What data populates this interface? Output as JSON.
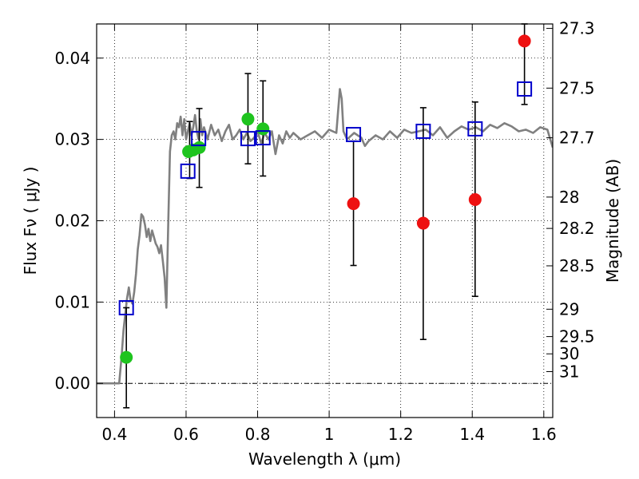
{
  "chart_data": {
    "type": "scatter",
    "title": "",
    "xlabel": "Wavelength  λ (μm)",
    "ylabel": "Flux  Fν  ( μJy )",
    "y2label": "Magnitude (AB)",
    "xlim": [
      0.35,
      1.625
    ],
    "ylim": [
      -0.0042,
      0.0442
    ],
    "grid": true,
    "xticks": [
      {
        "value": 0.4,
        "label": "0.4"
      },
      {
        "value": 0.6,
        "label": "0.6"
      },
      {
        "value": 0.8,
        "label": "0.8"
      },
      {
        "value": 1.0,
        "label": "1"
      },
      {
        "value": 1.2,
        "label": "1.2"
      },
      {
        "value": 1.4,
        "label": "1.4"
      },
      {
        "value": 1.6,
        "label": "1.6"
      }
    ],
    "yticks": [
      {
        "value": 0.0,
        "label": "0.00"
      },
      {
        "value": 0.01,
        "label": "0.01"
      },
      {
        "value": 0.02,
        "label": "0.02"
      },
      {
        "value": 0.03,
        "label": "0.03"
      },
      {
        "value": 0.04,
        "label": "0.04"
      }
    ],
    "y2ticks": [
      {
        "value": 27.3,
        "label": "27.3"
      },
      {
        "value": 27.5,
        "label": "27.5"
      },
      {
        "value": 27.7,
        "label": "27.7"
      },
      {
        "value": 28,
        "label": "28"
      },
      {
        "value": 28.2,
        "label": "28.2"
      },
      {
        "value": 28.5,
        "label": "28.5"
      },
      {
        "value": 29,
        "label": "29"
      },
      {
        "value": 29.5,
        "label": "29.5"
      },
      {
        "value": 30,
        "label": "30"
      },
      {
        "value": 31,
        "label": "31"
      }
    ],
    "colors": {
      "model": "#808080",
      "green": "#1fc41f",
      "red": "#ee1111",
      "blue": "#0000cc",
      "errorbar": "#000000"
    },
    "series": [
      {
        "kind": "line",
        "x": [
          0.35,
          0.4,
          0.413,
          0.42,
          0.425,
          0.43,
          0.435,
          0.44,
          0.445,
          0.45,
          0.455,
          0.46,
          0.465,
          0.47,
          0.475,
          0.48,
          0.485,
          0.49,
          0.495,
          0.5,
          0.505,
          0.51,
          0.515,
          0.52,
          0.525,
          0.53,
          0.535,
          0.54,
          0.545,
          0.55,
          0.555,
          0.56,
          0.565,
          0.57,
          0.575,
          0.58,
          0.585,
          0.59,
          0.595,
          0.6,
          0.605,
          0.61,
          0.615,
          0.62,
          0.625,
          0.63,
          0.635,
          0.64,
          0.645,
          0.65,
          0.66,
          0.67,
          0.68,
          0.69,
          0.7,
          0.71,
          0.72,
          0.73,
          0.74,
          0.75,
          0.76,
          0.77,
          0.78,
          0.79,
          0.8,
          0.81,
          0.82,
          0.83,
          0.84,
          0.85,
          0.86,
          0.87,
          0.88,
          0.89,
          0.9,
          0.92,
          0.94,
          0.96,
          0.98,
          1.0,
          1.02,
          1.03,
          1.035,
          1.04,
          1.05,
          1.07,
          1.09,
          1.1,
          1.11,
          1.13,
          1.15,
          1.17,
          1.19,
          1.21,
          1.23,
          1.25,
          1.27,
          1.29,
          1.31,
          1.33,
          1.35,
          1.37,
          1.39,
          1.41,
          1.43,
          1.45,
          1.47,
          1.49,
          1.51,
          1.53,
          1.55,
          1.57,
          1.59,
          1.61,
          1.625
        ],
        "y": [
          0.0,
          0.0,
          0.0,
          0.0034,
          0.0065,
          0.0085,
          0.0105,
          0.0118,
          0.0102,
          0.0098,
          0.0112,
          0.0135,
          0.0165,
          0.0182,
          0.0208,
          0.0205,
          0.0195,
          0.018,
          0.019,
          0.0175,
          0.0188,
          0.018,
          0.0172,
          0.0168,
          0.016,
          0.017,
          0.015,
          0.013,
          0.0093,
          0.0195,
          0.0285,
          0.0305,
          0.031,
          0.03,
          0.032,
          0.0315,
          0.0328,
          0.0305,
          0.0325,
          0.03,
          0.031,
          0.032,
          0.0305,
          0.0315,
          0.033,
          0.031,
          0.03,
          0.0325,
          0.0305,
          0.0315,
          0.03,
          0.0318,
          0.0305,
          0.0312,
          0.0298,
          0.031,
          0.0318,
          0.03,
          0.0305,
          0.0312,
          0.03,
          0.0308,
          0.0298,
          0.0302,
          0.031,
          0.0295,
          0.0308,
          0.03,
          0.031,
          0.0282,
          0.0305,
          0.0295,
          0.031,
          0.0302,
          0.0308,
          0.03,
          0.0305,
          0.031,
          0.0302,
          0.0312,
          0.0308,
          0.0362,
          0.035,
          0.031,
          0.03,
          0.0308,
          0.0302,
          0.0292,
          0.0298,
          0.0305,
          0.03,
          0.031,
          0.0302,
          0.0312,
          0.0308,
          0.031,
          0.0312,
          0.0305,
          0.0315,
          0.0302,
          0.031,
          0.0316,
          0.0312,
          0.0315,
          0.031,
          0.0318,
          0.0314,
          0.032,
          0.0316,
          0.031,
          0.0312,
          0.0308,
          0.0315,
          0.0312,
          0.029
        ]
      },
      {
        "kind": "points",
        "marker": "circle",
        "color": "green",
        "x": [
          0.433,
          0.607,
          0.62,
          0.637,
          0.773,
          0.815
        ],
        "y": [
          0.0032,
          0.0285,
          0.0287,
          0.029,
          0.0325,
          0.0313
        ]
      },
      {
        "kind": "points",
        "marker": "circle",
        "color": "red",
        "x": [
          1.068,
          1.263,
          1.408,
          1.546
        ],
        "y": [
          0.0221,
          0.0197,
          0.0226,
          0.0421
        ]
      },
      {
        "kind": "points",
        "marker": "square",
        "color": "blue",
        "x": [
          0.433,
          0.605,
          0.635,
          0.773,
          0.815,
          1.068,
          1.263,
          1.408,
          1.546
        ],
        "y": [
          0.0093,
          0.0261,
          0.0301,
          0.0301,
          0.0302,
          0.0306,
          0.031,
          0.0313,
          0.0362
        ]
      },
      {
        "kind": "errorbars",
        "points": [
          {
            "x": 0.433,
            "low": -0.003,
            "high": 0.0093
          },
          {
            "x": 0.61,
            "low": 0.0252,
            "high": 0.0322
          },
          {
            "x": 0.637,
            "low": 0.0241,
            "high": 0.0338
          },
          {
            "x": 0.773,
            "low": 0.027,
            "high": 0.0381
          },
          {
            "x": 0.815,
            "low": 0.0255,
            "high": 0.0372
          },
          {
            "x": 1.068,
            "low": 0.0145,
            "high": 0.0298
          },
          {
            "x": 1.263,
            "low": 0.0054,
            "high": 0.0339
          },
          {
            "x": 1.408,
            "low": 0.0107,
            "high": 0.0346
          },
          {
            "x": 1.546,
            "low": 0.0343,
            "high": 0.0442
          }
        ]
      }
    ]
  }
}
